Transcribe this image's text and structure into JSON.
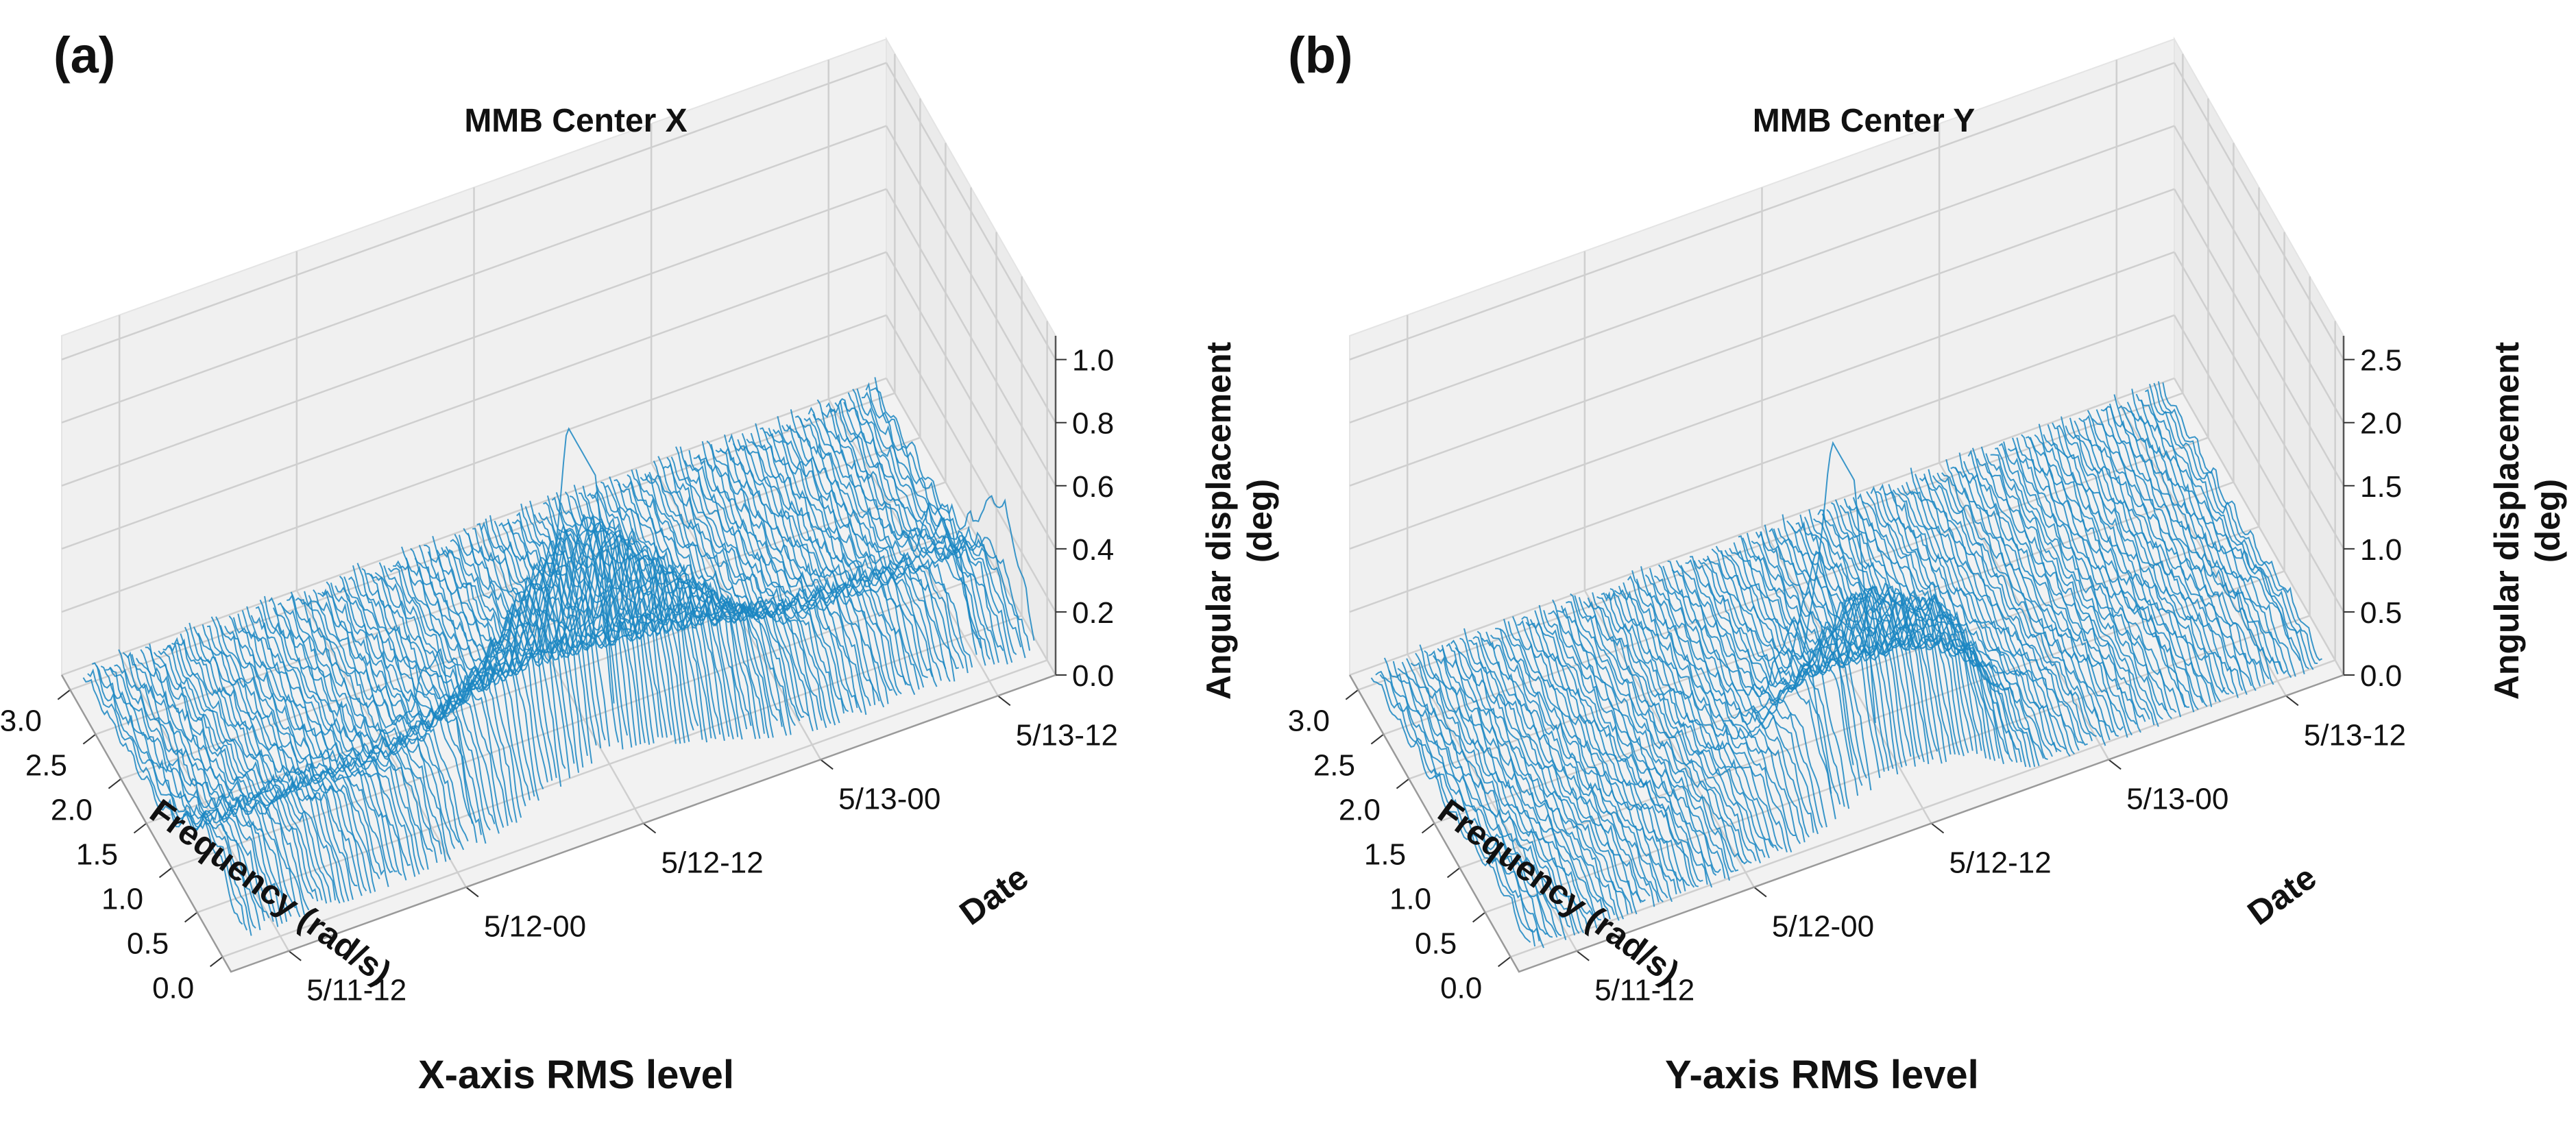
{
  "chart_data": [
    {
      "type": "surface-waterfall",
      "panel_label": "(a)",
      "title": "MMB Center X",
      "caption": "X-axis RMS level",
      "xlabel": "Frequency (rad/s)",
      "ylabel": "Date",
      "zlabel_line1": "Angular displacement",
      "zlabel_line2": "(deg)",
      "x_ticks": [
        "0.0",
        "0.5",
        "1.0",
        "1.5",
        "2.0",
        "2.5",
        "3.0"
      ],
      "y_ticks": [
        "5/11-12",
        "5/12-00",
        "5/12-12",
        "5/13-00",
        "5/13-12"
      ],
      "z_ticks": [
        "0.0",
        "0.2",
        "0.4",
        "0.6",
        "0.8",
        "1.0"
      ],
      "xlim": [
        0,
        3.0
      ],
      "zlim": [
        0,
        1.0
      ],
      "line_color": "#1a86c2",
      "series_count": 180,
      "peak_frequency": 0.6,
      "peak_amplitude": 1.0
    },
    {
      "type": "surface-waterfall",
      "panel_label": "(b)",
      "title": "MMB Center Y",
      "caption": "Y-axis RMS level",
      "xlabel": "Frequency (rad/s)",
      "ylabel": "Date",
      "zlabel_line1": "Angular displacement",
      "zlabel_line2": "(deg)",
      "x_ticks": [
        "0.0",
        "0.5",
        "1.0",
        "1.5",
        "2.0",
        "2.5",
        "3.0"
      ],
      "y_ticks": [
        "5/11-12",
        "5/12-00",
        "5/12-12",
        "5/13-00",
        "5/13-12"
      ],
      "z_ticks": [
        "0.0",
        "0.5",
        "1.0",
        "1.5",
        "2.0",
        "2.5"
      ],
      "xlim": [
        0,
        3.0
      ],
      "zlim": [
        0,
        2.5
      ],
      "line_color": "#1a86c2",
      "series_count": 180,
      "peak_frequency": 0.6,
      "peak_amplitude": 2.2
    }
  ]
}
